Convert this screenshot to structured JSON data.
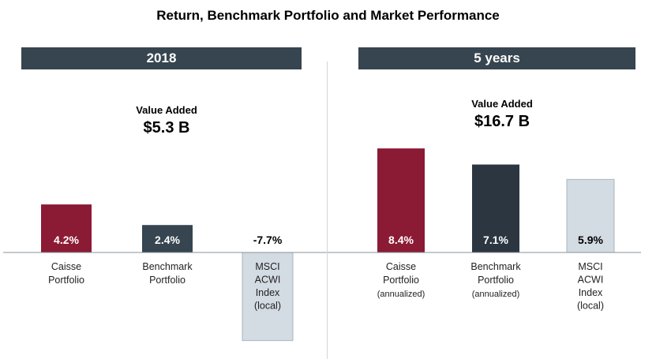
{
  "chart_data": [
    {
      "type": "bar",
      "title": "Return, Benchmark Portfolio and Market Performance",
      "panel_title": "2018",
      "value_added_label": "Value Added",
      "value_added": "$5.3 B",
      "categories": [
        [
          "Caisse",
          "Portfolio"
        ],
        [
          "Benchmark",
          "Portfolio"
        ],
        [
          "MSCI",
          "ACWI",
          "Index",
          "(local)"
        ]
      ],
      "values": [
        4.2,
        2.4,
        -7.7
      ],
      "data_labels": [
        "4.2%",
        "2.4%",
        "-7.7%"
      ],
      "colors": [
        "#8b1a35",
        "#36454f",
        "#d3dbe3"
      ],
      "grid": false
    },
    {
      "type": "bar",
      "panel_title": "5 years",
      "value_added_label": "Value Added",
      "value_added": "$16.7 B",
      "categories": [
        [
          "Caisse",
          "Portfolio",
          "(annualized)"
        ],
        [
          "Benchmark",
          "Portfolio",
          "(annualized)"
        ],
        [
          "MSCI",
          "ACWI",
          "Index",
          "(local)"
        ]
      ],
      "values": [
        8.4,
        7.1,
        5.9
      ],
      "data_labels": [
        "8.4%",
        "7.1%",
        "5.9%"
      ],
      "colors": [
        "#8b1a35",
        "#2b3641",
        "#d3dbe3"
      ],
      "grid": false
    }
  ]
}
